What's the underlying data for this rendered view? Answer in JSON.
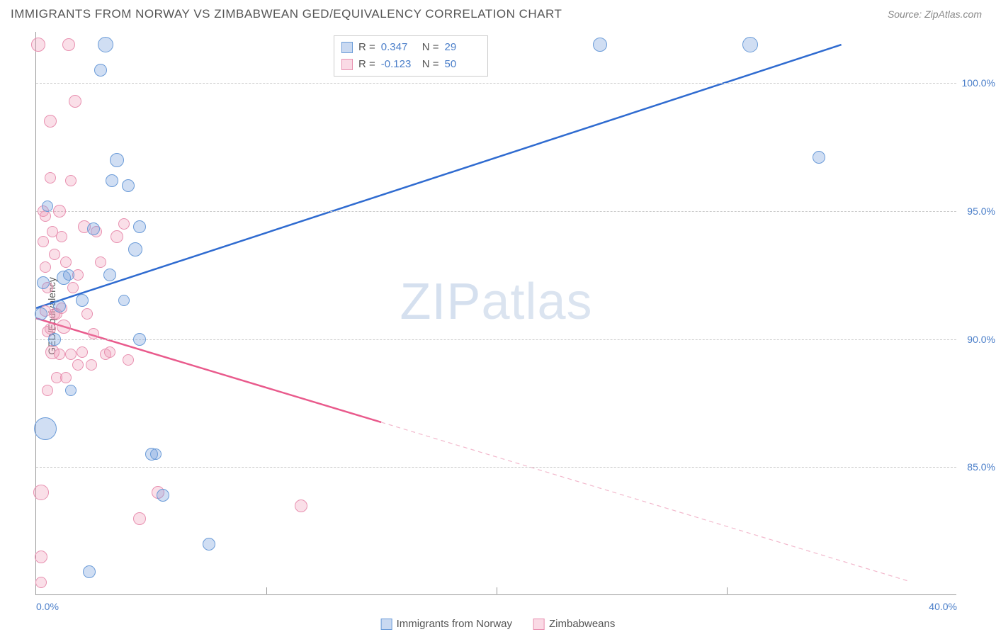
{
  "header": {
    "title": "IMMIGRANTS FROM NORWAY VS ZIMBABWEAN GED/EQUIVALENCY CORRELATION CHART",
    "source_prefix": "Source: ",
    "source": "ZipAtlas.com"
  },
  "chart": {
    "type": "scatter-with-trend",
    "y_label": "GED/Equivalency",
    "xlim": [
      0,
      40
    ],
    "ylim": [
      80,
      102
    ],
    "x_ticks": [
      0,
      10,
      20,
      30,
      40
    ],
    "x_tick_labels": [
      "0.0%",
      "",
      "",
      "",
      "40.0%"
    ],
    "y_ticks": [
      85,
      90,
      95,
      100
    ],
    "y_tick_labels": [
      "85.0%",
      "90.0%",
      "95.0%",
      "100.0%"
    ],
    "grid_color": "#cccccc",
    "axis_color": "#999999",
    "tick_label_color": "#4a7ec9",
    "background_color": "#ffffff",
    "watermark": "ZIPatlas",
    "series": {
      "blue": {
        "label": "Immigrants from Norway",
        "color_fill": "rgba(120,160,220,0.35)",
        "color_stroke": "#6a9bd8",
        "R": "0.347",
        "N": "29",
        "trend": {
          "x1": 0,
          "y1": 91.2,
          "x2": 35,
          "y2": 101.5,
          "dash_after_x": 40,
          "color": "#2f6bd0",
          "width": 2.5
        },
        "points": [
          {
            "x": 0.2,
            "y": 91,
            "r": 9
          },
          {
            "x": 0.4,
            "y": 86.5,
            "r": 16
          },
          {
            "x": 0.5,
            "y": 95.2,
            "r": 8
          },
          {
            "x": 0.8,
            "y": 90,
            "r": 9
          },
          {
            "x": 1.0,
            "y": 91.3,
            "r": 9
          },
          {
            "x": 1.2,
            "y": 92.4,
            "r": 10
          },
          {
            "x": 1.4,
            "y": 92.5,
            "r": 8
          },
          {
            "x": 1.5,
            "y": 88,
            "r": 8
          },
          {
            "x": 2.0,
            "y": 91.5,
            "r": 9
          },
          {
            "x": 2.5,
            "y": 94.3,
            "r": 9
          },
          {
            "x": 2.8,
            "y": 100.5,
            "r": 9
          },
          {
            "x": 3.0,
            "y": 101.5,
            "r": 11
          },
          {
            "x": 3.2,
            "y": 92.5,
            "r": 9
          },
          {
            "x": 3.3,
            "y": 96.2,
            "r": 9
          },
          {
            "x": 3.5,
            "y": 97,
            "r": 10
          },
          {
            "x": 3.8,
            "y": 91.5,
            "r": 8
          },
          {
            "x": 4.0,
            "y": 96,
            "r": 9
          },
          {
            "x": 4.3,
            "y": 93.5,
            "r": 10
          },
          {
            "x": 4.5,
            "y": 90,
            "r": 9
          },
          {
            "x": 4.5,
            "y": 94.4,
            "r": 9
          },
          {
            "x": 5.0,
            "y": 85.5,
            "r": 9
          },
          {
            "x": 5.2,
            "y": 85.5,
            "r": 8
          },
          {
            "x": 5.5,
            "y": 83.9,
            "r": 9
          },
          {
            "x": 7.5,
            "y": 82,
            "r": 9
          },
          {
            "x": 2.3,
            "y": 80.9,
            "r": 9
          },
          {
            "x": 24.5,
            "y": 101.5,
            "r": 10
          },
          {
            "x": 31,
            "y": 101.5,
            "r": 11
          },
          {
            "x": 34,
            "y": 97.1,
            "r": 9
          },
          {
            "x": 0.3,
            "y": 92.2,
            "r": 9
          }
        ]
      },
      "pink": {
        "label": "Zimbabweans",
        "color_fill": "rgba(240,150,180,0.3)",
        "color_stroke": "#e890b0",
        "R": "-0.123",
        "N": "50",
        "trend": {
          "x1": 0,
          "y1": 90.8,
          "x2": 38,
          "y2": 80.5,
          "solid_until_x": 15,
          "color": "#e95a8c",
          "width": 2.5
        },
        "points": [
          {
            "x": 0.1,
            "y": 101.5,
            "r": 10
          },
          {
            "x": 0.2,
            "y": 84,
            "r": 11
          },
          {
            "x": 0.2,
            "y": 81.5,
            "r": 9
          },
          {
            "x": 0.3,
            "y": 95,
            "r": 8
          },
          {
            "x": 0.3,
            "y": 93.8,
            "r": 8
          },
          {
            "x": 0.4,
            "y": 94.8,
            "r": 8
          },
          {
            "x": 0.4,
            "y": 92.8,
            "r": 8
          },
          {
            "x": 0.5,
            "y": 92,
            "r": 8
          },
          {
            "x": 0.5,
            "y": 90.3,
            "r": 8
          },
          {
            "x": 0.5,
            "y": 88,
            "r": 8
          },
          {
            "x": 0.6,
            "y": 98.5,
            "r": 9
          },
          {
            "x": 0.6,
            "y": 96.3,
            "r": 8
          },
          {
            "x": 0.7,
            "y": 94.2,
            "r": 8
          },
          {
            "x": 0.7,
            "y": 89.5,
            "r": 10
          },
          {
            "x": 0.8,
            "y": 93.3,
            "r": 8
          },
          {
            "x": 0.8,
            "y": 91,
            "r": 8
          },
          {
            "x": 0.9,
            "y": 91,
            "r": 8
          },
          {
            "x": 0.9,
            "y": 88.5,
            "r": 8
          },
          {
            "x": 1.0,
            "y": 95,
            "r": 9
          },
          {
            "x": 1.0,
            "y": 89.4,
            "r": 8
          },
          {
            "x": 1.1,
            "y": 94,
            "r": 8
          },
          {
            "x": 1.2,
            "y": 90.5,
            "r": 10
          },
          {
            "x": 1.3,
            "y": 93,
            "r": 8
          },
          {
            "x": 1.3,
            "y": 88.5,
            "r": 8
          },
          {
            "x": 1.4,
            "y": 101.5,
            "r": 9
          },
          {
            "x": 1.5,
            "y": 96.2,
            "r": 8
          },
          {
            "x": 1.5,
            "y": 89.4,
            "r": 8
          },
          {
            "x": 1.6,
            "y": 92,
            "r": 8
          },
          {
            "x": 1.7,
            "y": 99.3,
            "r": 9
          },
          {
            "x": 1.8,
            "y": 89,
            "r": 8
          },
          {
            "x": 1.8,
            "y": 92.5,
            "r": 8
          },
          {
            "x": 2.0,
            "y": 89.5,
            "r": 8
          },
          {
            "x": 2.1,
            "y": 94.4,
            "r": 9
          },
          {
            "x": 2.2,
            "y": 91,
            "r": 8
          },
          {
            "x": 2.4,
            "y": 89,
            "r": 8
          },
          {
            "x": 2.5,
            "y": 90.2,
            "r": 8
          },
          {
            "x": 2.6,
            "y": 94.2,
            "r": 8
          },
          {
            "x": 2.8,
            "y": 93,
            "r": 8
          },
          {
            "x": 3.0,
            "y": 89.4,
            "r": 8
          },
          {
            "x": 3.2,
            "y": 89.5,
            "r": 8
          },
          {
            "x": 3.5,
            "y": 94,
            "r": 9
          },
          {
            "x": 3.8,
            "y": 94.5,
            "r": 8
          },
          {
            "x": 4.0,
            "y": 89.2,
            "r": 8
          },
          {
            "x": 4.5,
            "y": 83,
            "r": 9
          },
          {
            "x": 5.3,
            "y": 84,
            "r": 9
          },
          {
            "x": 11.5,
            "y": 83.5,
            "r": 9
          },
          {
            "x": 0.2,
            "y": 80.5,
            "r": 8
          },
          {
            "x": 0.4,
            "y": 91.1,
            "r": 8
          },
          {
            "x": 1.1,
            "y": 91.2,
            "r": 8
          },
          {
            "x": 0.6,
            "y": 90.4,
            "r": 8
          }
        ]
      }
    }
  },
  "stats_box": {
    "rows": [
      {
        "swatch": "blue",
        "r_label": "R =",
        "r_val": "0.347",
        "n_label": "N =",
        "n_val": "29"
      },
      {
        "swatch": "pink",
        "r_label": "R =",
        "r_val": "-0.123",
        "n_label": "N =",
        "n_val": "50"
      }
    ]
  },
  "legend": {
    "items": [
      {
        "swatch": "blue",
        "label": "Immigrants from Norway"
      },
      {
        "swatch": "pink",
        "label": "Zimbabweans"
      }
    ]
  }
}
